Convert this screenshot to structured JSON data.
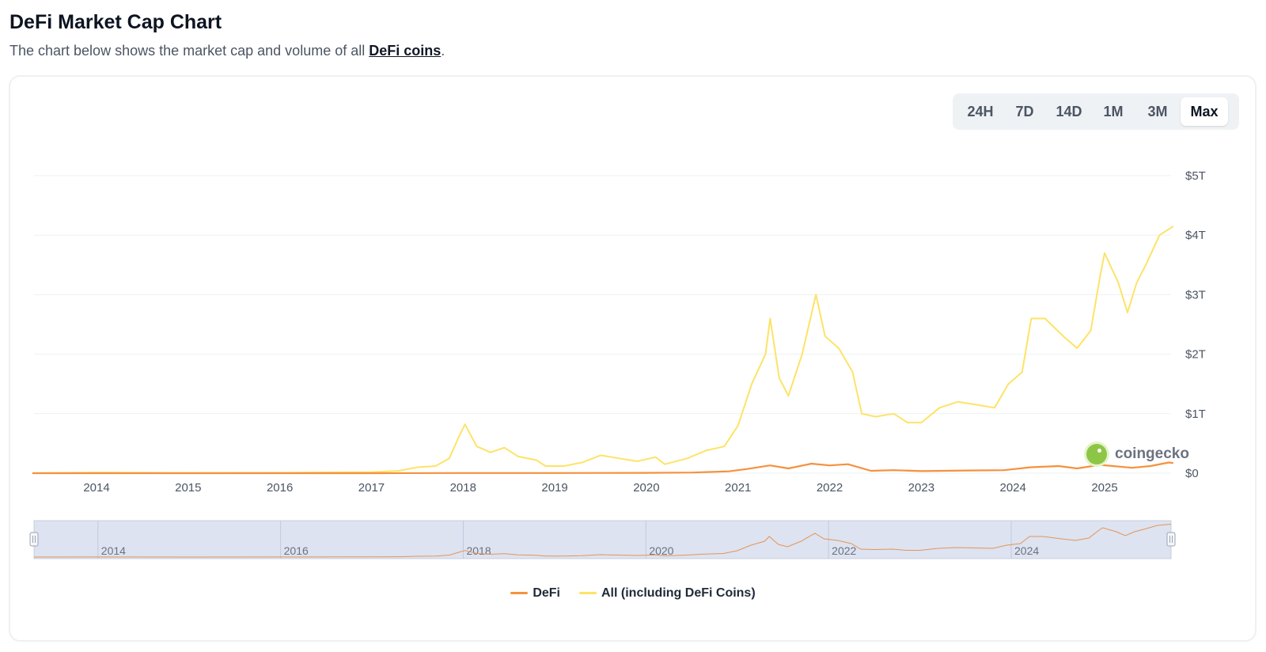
{
  "header": {
    "title": "DeFi Market Cap Chart",
    "subtitle_prefix": "The chart below shows the market cap and volume of all ",
    "subtitle_link": "DeFi coins",
    "subtitle_suffix": "."
  },
  "range_buttons": [
    "24H",
    "7D",
    "14D",
    "1M",
    "3M",
    "Max"
  ],
  "active_range": "Max",
  "watermark": "coingecko",
  "colors": {
    "defi": "#f5913e",
    "all": "#fde367",
    "grid": "#eef0f3",
    "navigator_bg": "#dde3f0"
  },
  "chart_data": {
    "type": "line",
    "x_type": "date",
    "x_ticks": [
      "2014",
      "2015",
      "2016",
      "2017",
      "2018",
      "2019",
      "2020",
      "2021",
      "2022",
      "2023",
      "2024",
      "2025"
    ],
    "y_ticks": [
      "$0",
      "$1T",
      "$2T",
      "$3T",
      "$4T",
      "$5T"
    ],
    "ylim": [
      0,
      5
    ],
    "y_unit": "T USD",
    "grid": true,
    "legend_position": "bottom",
    "series": [
      {
        "name": "DeFi",
        "points": [
          [
            2013.3,
            0.0
          ],
          [
            2017.0,
            0.0
          ],
          [
            2018.0,
            0.002
          ],
          [
            2019.0,
            0.002
          ],
          [
            2020.0,
            0.005
          ],
          [
            2020.5,
            0.01
          ],
          [
            2020.9,
            0.03
          ],
          [
            2021.1,
            0.07
          ],
          [
            2021.35,
            0.13
          ],
          [
            2021.55,
            0.08
          ],
          [
            2021.8,
            0.16
          ],
          [
            2022.0,
            0.13
          ],
          [
            2022.2,
            0.15
          ],
          [
            2022.45,
            0.04
          ],
          [
            2022.7,
            0.05
          ],
          [
            2023.0,
            0.035
          ],
          [
            2023.5,
            0.045
          ],
          [
            2023.9,
            0.05
          ],
          [
            2024.2,
            0.1
          ],
          [
            2024.5,
            0.12
          ],
          [
            2024.7,
            0.08
          ],
          [
            2024.95,
            0.14
          ],
          [
            2025.3,
            0.09
          ],
          [
            2025.5,
            0.12
          ],
          [
            2025.7,
            0.18
          ],
          [
            2025.75,
            0.17
          ]
        ]
      },
      {
        "name": "All (including DeFi Coins)",
        "points": [
          [
            2013.3,
            0.0
          ],
          [
            2014.0,
            0.01
          ],
          [
            2015.0,
            0.004
          ],
          [
            2016.0,
            0.007
          ],
          [
            2017.0,
            0.018
          ],
          [
            2017.3,
            0.04
          ],
          [
            2017.5,
            0.1
          ],
          [
            2017.7,
            0.12
          ],
          [
            2017.85,
            0.25
          ],
          [
            2017.95,
            0.6
          ],
          [
            2018.02,
            0.82
          ],
          [
            2018.15,
            0.45
          ],
          [
            2018.3,
            0.35
          ],
          [
            2018.45,
            0.43
          ],
          [
            2018.6,
            0.28
          ],
          [
            2018.8,
            0.22
          ],
          [
            2018.9,
            0.12
          ],
          [
            2019.1,
            0.12
          ],
          [
            2019.3,
            0.18
          ],
          [
            2019.5,
            0.3
          ],
          [
            2019.7,
            0.25
          ],
          [
            2019.9,
            0.2
          ],
          [
            2020.1,
            0.27
          ],
          [
            2020.2,
            0.15
          ],
          [
            2020.45,
            0.25
          ],
          [
            2020.65,
            0.38
          ],
          [
            2020.85,
            0.45
          ],
          [
            2021.0,
            0.8
          ],
          [
            2021.15,
            1.5
          ],
          [
            2021.3,
            2.0
          ],
          [
            2021.35,
            2.6
          ],
          [
            2021.45,
            1.6
          ],
          [
            2021.55,
            1.3
          ],
          [
            2021.7,
            2.0
          ],
          [
            2021.85,
            3.0
          ],
          [
            2021.95,
            2.3
          ],
          [
            2022.1,
            2.1
          ],
          [
            2022.25,
            1.7
          ],
          [
            2022.35,
            1.0
          ],
          [
            2022.5,
            0.95
          ],
          [
            2022.7,
            1.0
          ],
          [
            2022.85,
            0.85
          ],
          [
            2023.0,
            0.85
          ],
          [
            2023.2,
            1.1
          ],
          [
            2023.4,
            1.2
          ],
          [
            2023.6,
            1.15
          ],
          [
            2023.8,
            1.1
          ],
          [
            2023.95,
            1.5
          ],
          [
            2024.1,
            1.7
          ],
          [
            2024.2,
            2.6
          ],
          [
            2024.35,
            2.6
          ],
          [
            2024.55,
            2.3
          ],
          [
            2024.7,
            2.1
          ],
          [
            2024.85,
            2.4
          ],
          [
            2024.95,
            3.3
          ],
          [
            2025.0,
            3.7
          ],
          [
            2025.15,
            3.2
          ],
          [
            2025.25,
            2.7
          ],
          [
            2025.35,
            3.2
          ],
          [
            2025.45,
            3.5
          ],
          [
            2025.6,
            4.0
          ],
          [
            2025.75,
            4.15
          ]
        ]
      }
    ],
    "navigator": {
      "x_ticks": [
        "2014",
        "2016",
        "2018",
        "2020",
        "2022",
        "2024"
      ]
    }
  }
}
